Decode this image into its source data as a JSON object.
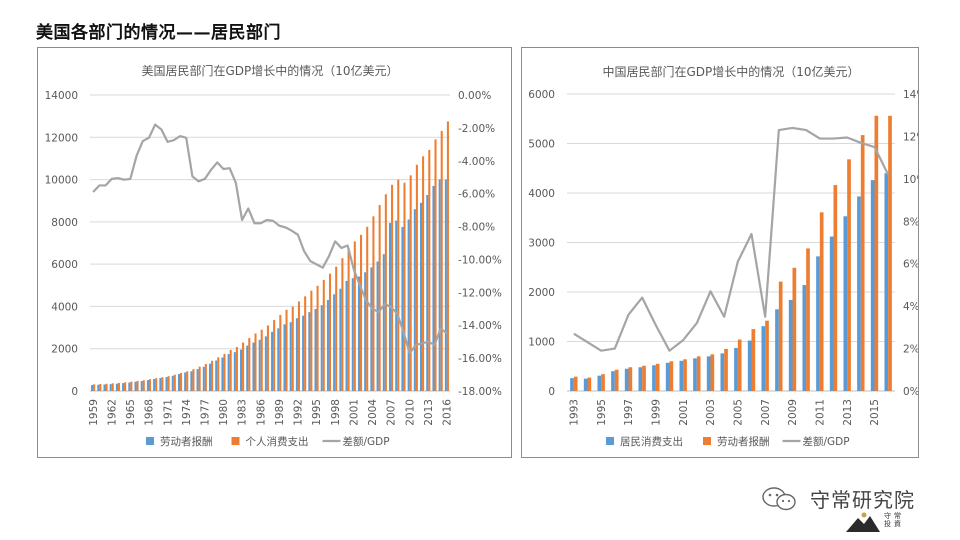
{
  "page": {
    "title": "美国各部门的情况——居民部门"
  },
  "colors": {
    "blue": "#5b9bd5",
    "orange": "#ed7d31",
    "gray": "#a5a5a5"
  },
  "brand": {
    "name": "守常研究院",
    "icon": "wechat-icon",
    "seal_text": "守常 投資"
  },
  "chart_data": [
    {
      "id": "us",
      "type": "bar",
      "title": "美国居民部门在GDP增长中的情况（10亿美元）",
      "years": [
        1959,
        1960,
        1961,
        1962,
        1963,
        1964,
        1965,
        1966,
        1967,
        1968,
        1969,
        1970,
        1971,
        1972,
        1973,
        1974,
        1975,
        1976,
        1977,
        1978,
        1979,
        1980,
        1981,
        1982,
        1983,
        1984,
        1985,
        1986,
        1987,
        1988,
        1989,
        1990,
        1991,
        1992,
        1993,
        1994,
        1995,
        1996,
        1997,
        1998,
        1999,
        2000,
        2001,
        2002,
        2003,
        2004,
        2005,
        2006,
        2007,
        2008,
        2009,
        2010,
        2011,
        2012,
        2013,
        2014,
        2015,
        2016
      ],
      "tick_labels": [
        "1959",
        "1962",
        "1965",
        "1968",
        "1971",
        "1974",
        "1977",
        "1980",
        "1983",
        "1986",
        "1989",
        "1992",
        "1995",
        "1998",
        "2001",
        "2004",
        "2007",
        "2010",
        "2013",
        "2016"
      ],
      "series": [
        {
          "name": "劳动者报酬",
          "axis": "left",
          "kind": "bar",
          "values": [
            282,
            296,
            305,
            327,
            346,
            372,
            397,
            438,
            473,
            516,
            570,
            616,
            658,
            718,
            799,
            876,
            931,
            1031,
            1144,
            1292,
            1443,
            1584,
            1746,
            1838,
            1958,
            2148,
            2292,
            2420,
            2584,
            2798,
            2963,
            3152,
            3254,
            3443,
            3562,
            3729,
            3877,
            4056,
            4302,
            4573,
            4836,
            5208,
            5336,
            5413,
            5615,
            5844,
            6125,
            6472,
            7950,
            8060,
            7760,
            8110,
            8600,
            8900,
            9270,
            9700,
            10000,
            10000
          ]
        },
        {
          "name": "个人消费支出",
          "axis": "left",
          "kind": "bar",
          "values": [
            317,
            331,
            342,
            363,
            383,
            411,
            443,
            480,
            507,
            558,
            605,
            648,
            701,
            770,
            852,
            933,
            1034,
            1152,
            1279,
            1429,
            1592,
            1756,
            1941,
            2078,
            2292,
            2503,
            2721,
            2899,
            3100,
            3354,
            3598,
            3840,
            3986,
            4235,
            4477,
            4743,
            4976,
            5256,
            5547,
            5880,
            6283,
            6767,
            7074,
            7385,
            7766,
            8260,
            8794,
            9304,
            9750,
            10000,
            9850,
            10200,
            10700,
            11100,
            11400,
            11900,
            12300,
            12750
          ]
        },
        {
          "name": "差额/GDP",
          "axis": "right",
          "kind": "line",
          "values": [
            -5.9,
            -5.5,
            -5.5,
            -5.1,
            -5.05,
            -5.15,
            -5.1,
            -3.7,
            -2.8,
            -2.6,
            -1.8,
            -2.1,
            -2.85,
            -2.75,
            -2.5,
            -2.6,
            -4.95,
            -5.25,
            -5.1,
            -4.55,
            -4.1,
            -4.5,
            -4.45,
            -5.35,
            -7.6,
            -6.9,
            -7.8,
            -7.8,
            -7.6,
            -7.65,
            -7.95,
            -8.05,
            -8.25,
            -8.5,
            -9.5,
            -10.1,
            -10.3,
            -10.5,
            -9.8,
            -8.9,
            -9.3,
            -9.15,
            -10.6,
            -11.6,
            -12.5,
            -13.0,
            -13.2,
            -12.7,
            -12.9,
            -13.3,
            -14.4,
            -15.7,
            -15.2,
            -15.1,
            -15.0,
            -15.2,
            -14.2,
            -14.5
          ]
        }
      ],
      "left_axis": {
        "min": 0,
        "max": 14000,
        "step": 2000,
        "labels": [
          "0",
          "2000",
          "4000",
          "6000",
          "8000",
          "10000",
          "12000",
          "14000"
        ]
      },
      "right_axis": {
        "min": -18,
        "max": 0,
        "step": 2,
        "labels": [
          "-18.00%",
          "-16.00%",
          "-14.00%",
          "-12.00%",
          "-10.00%",
          "-8.00%",
          "-6.00%",
          "-4.00%",
          "-2.00%",
          "0.00%"
        ]
      },
      "legend": [
        {
          "name": "劳动者报酬",
          "kind": "bar",
          "color": "#5b9bd5"
        },
        {
          "name": "个人消费支出",
          "kind": "bar",
          "color": "#ed7d31"
        },
        {
          "name": "差额/GDP",
          "kind": "line",
          "color": "#a5a5a5"
        }
      ],
      "legend_position": "bottom",
      "grid": true
    },
    {
      "id": "cn",
      "type": "bar",
      "title": "中国居民部门在GDP增长中的情况（10亿美元）",
      "years": [
        1993,
        1994,
        1995,
        1996,
        1997,
        1998,
        1999,
        2000,
        2001,
        2002,
        2003,
        2004,
        2005,
        2006,
        2007,
        2008,
        2009,
        2010,
        2011,
        2012,
        2013,
        2014,
        2015,
        2016
      ],
      "tick_labels": [
        "1993",
        "1995",
        "1997",
        "1999",
        "2001",
        "2003",
        "2005",
        "2007",
        "2009",
        "2011",
        "2013",
        "2015"
      ],
      "series": [
        {
          "name": "居民消费支出",
          "axis": "left",
          "kind": "bar",
          "values": [
            260,
            250,
            310,
            400,
            450,
            480,
            520,
            570,
            610,
            660,
            700,
            760,
            870,
            1020,
            1310,
            1650,
            1840,
            2140,
            2720,
            3120,
            3530,
            3930,
            4260,
            4400
          ]
        },
        {
          "name": "劳动者报酬",
          "axis": "left",
          "kind": "bar",
          "values": [
            290,
            270,
            340,
            430,
            480,
            510,
            550,
            600,
            640,
            700,
            740,
            850,
            1040,
            1250,
            1420,
            2210,
            2490,
            2880,
            3610,
            4160,
            4680,
            5170,
            5560,
            5560
          ]
        },
        {
          "name": "差额/GDP",
          "axis": "right",
          "kind": "line",
          "values": [
            2.7,
            2.3,
            1.9,
            2.0,
            3.6,
            4.4,
            3.1,
            1.9,
            2.4,
            3.2,
            4.7,
            3.5,
            6.1,
            7.4,
            3.5,
            12.3,
            12.4,
            12.3,
            11.9,
            11.9,
            11.95,
            11.7,
            11.5,
            10.2
          ]
        }
      ],
      "left_axis": {
        "min": 0,
        "max": 6000,
        "step": 1000,
        "labels": [
          "0",
          "1000",
          "2000",
          "3000",
          "4000",
          "5000",
          "6000"
        ]
      },
      "right_axis": {
        "min": 0,
        "max": 14,
        "step": 2,
        "labels": [
          "0%",
          "2%",
          "4%",
          "6%",
          "8%",
          "10%",
          "12%",
          "14%"
        ]
      },
      "legend": [
        {
          "name": "居民消费支出",
          "kind": "bar",
          "color": "#5b9bd5"
        },
        {
          "name": "劳动者报酬",
          "kind": "bar",
          "color": "#ed7d31"
        },
        {
          "name": "差额/GDP",
          "kind": "line",
          "color": "#a5a5a5"
        }
      ],
      "legend_position": "bottom",
      "grid": true
    }
  ]
}
